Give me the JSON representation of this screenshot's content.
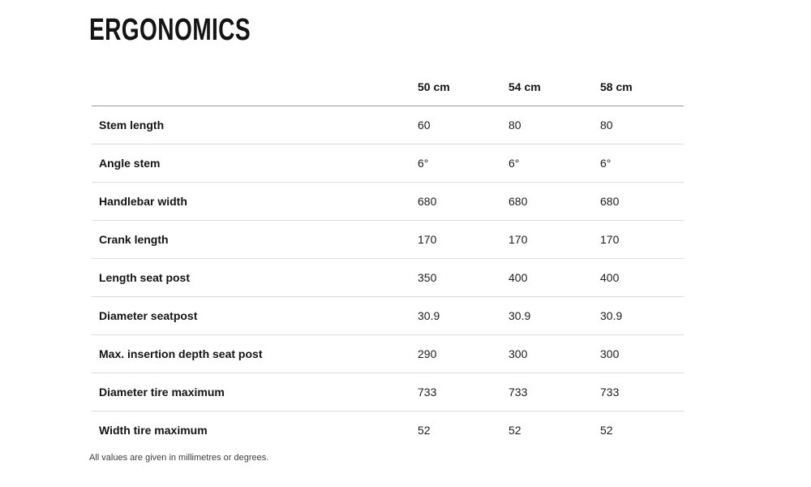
{
  "page": {
    "title": "ERGONOMICS",
    "footnote": "All values are given in millimetres or degrees."
  },
  "table": {
    "columns": [
      "50 cm",
      "54 cm",
      "58 cm"
    ],
    "rows": [
      {
        "label": "Stem length",
        "values": [
          "60",
          "80",
          "80"
        ]
      },
      {
        "label": "Angle stem",
        "values": [
          "6°",
          "6°",
          "6°"
        ]
      },
      {
        "label": "Handlebar width",
        "values": [
          "680",
          "680",
          "680"
        ]
      },
      {
        "label": "Crank length",
        "values": [
          "170",
          "170",
          "170"
        ]
      },
      {
        "label": "Length seat post",
        "values": [
          "350",
          "400",
          "400"
        ]
      },
      {
        "label": "Diameter seatpost",
        "values": [
          "30.9",
          "30.9",
          "30.9"
        ]
      },
      {
        "label": "Max. insertion depth seat post",
        "values": [
          "290",
          "300",
          "300"
        ]
      },
      {
        "label": "Diameter tire maximum",
        "values": [
          "733",
          "733",
          "733"
        ]
      },
      {
        "label": "Width tire maximum",
        "values": [
          "52",
          "52",
          "52"
        ]
      }
    ]
  },
  "colors": {
    "text": "#141414",
    "header_rule": "#9b9b9b",
    "row_rule": "#dcdcdc",
    "background": "#ffffff"
  }
}
